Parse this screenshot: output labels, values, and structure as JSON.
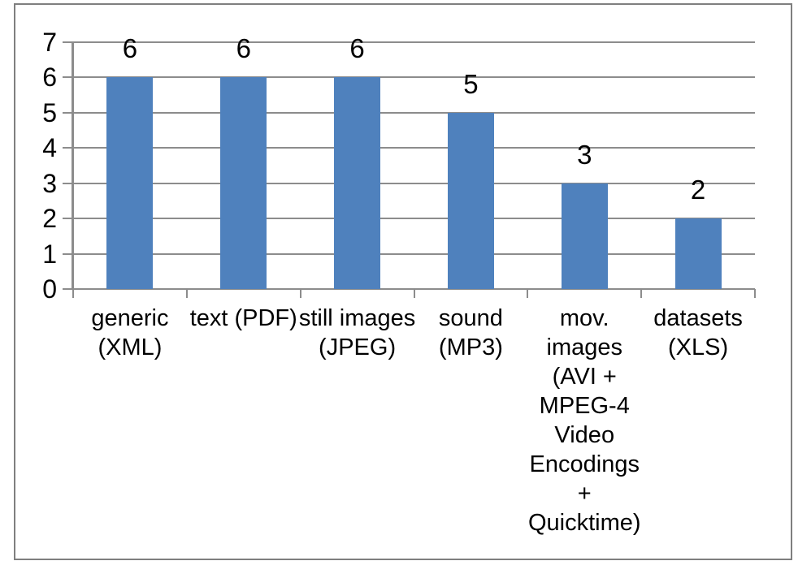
{
  "chart_data": {
    "type": "bar",
    "title": "",
    "xlabel": "",
    "ylabel": "",
    "categories": [
      "generic\n(XML)",
      "text (PDF)",
      "still images\n(JPEG)",
      "sound\n(MP3)",
      "mov.\nimages\n(AVI +\nMPEG-4\nVideo\nEncodings\n+\nQuicktime)",
      "datasets\n(XLS)"
    ],
    "values": [
      6,
      6,
      6,
      5,
      3,
      2
    ],
    "data_labels": [
      "6",
      "6",
      "6",
      "5",
      "3",
      "2"
    ],
    "data_labels_position": "outside-end",
    "ylim": [
      0,
      7
    ],
    "yticks": [
      0,
      1,
      2,
      3,
      4,
      5,
      6,
      7
    ],
    "grid": true,
    "legend": false,
    "colors": {
      "bar_fill": "#4F81BD",
      "gridline": "#8C8C8C",
      "axis": "#8C8C8C",
      "frame_border": "#7F7F7F",
      "text": "#000000",
      "background": "#FFFFFF"
    }
  }
}
